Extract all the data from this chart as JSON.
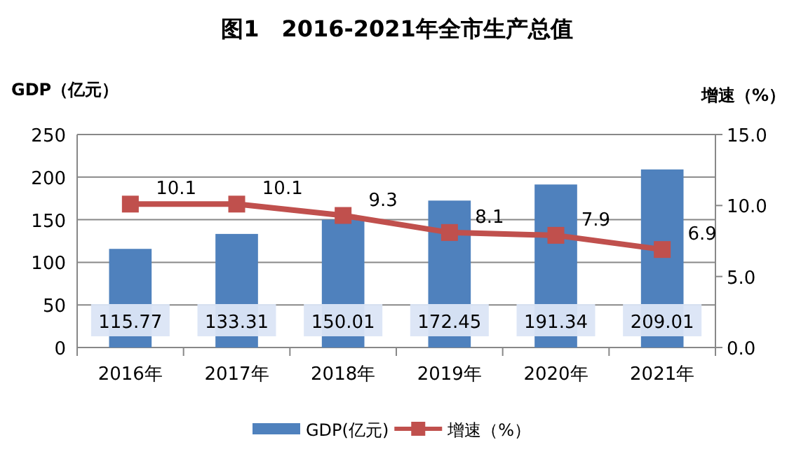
{
  "chart_data": {
    "type": "bar",
    "title": "图1　2016-2021年全市生产总值",
    "ylabel": "GDP（亿元）",
    "y2label": "增速（%）",
    "categories": [
      "2016年",
      "2017年",
      "2018年",
      "2019年",
      "2020年",
      "2021年"
    ],
    "series": [
      {
        "name": "GDP(亿元)",
        "type": "bar",
        "color": "#4f81bd",
        "values": [
          115.77,
          133.31,
          150.01,
          172.45,
          191.34,
          209.01
        ]
      },
      {
        "name": "增速（%）",
        "type": "line",
        "axis": "y2",
        "color": "#c0504d",
        "marker": "square",
        "values": [
          10.1,
          10.1,
          9.3,
          8.1,
          7.9,
          6.9
        ]
      }
    ],
    "ylim": [
      0,
      250
    ],
    "yticks": [
      0,
      50,
      100,
      150,
      200,
      250
    ],
    "y2lim": [
      0,
      15
    ],
    "y2ticks": [
      {
        "value": 0,
        "label": "0.0"
      },
      {
        "value": 5,
        "label": "5.0"
      },
      {
        "value": 10,
        "label": "10.0"
      },
      {
        "value": 15,
        "label": "15.0"
      }
    ],
    "grid": "y",
    "legend": "bottom",
    "data_labels": true
  }
}
